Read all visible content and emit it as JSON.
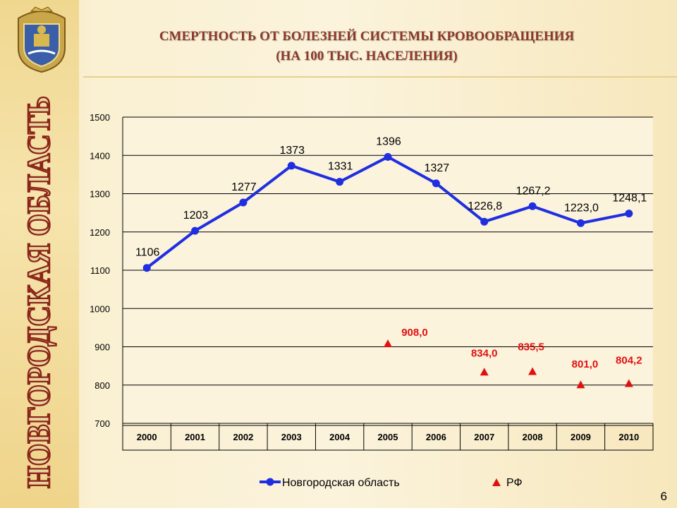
{
  "region_title": "НОВГОРОДСКАЯ ОБЛАСТЬ",
  "title_line1": "СМЕРТНОСТЬ ОТ БОЛЕЗНЕЙ СИСТЕМЫ КРОВООБРАЩЕНИЯ",
  "title_line2": "(НА 100 ТЫС. НАСЕЛЕНИЯ)",
  "page_number": "6",
  "colors": {
    "region_series": "#1f2fe0",
    "rf_series": "#e01010",
    "title": "#8b3a2a"
  },
  "chart_data": {
    "type": "line",
    "categories": [
      "2000",
      "2001",
      "2002",
      "2003",
      "2004",
      "2005",
      "2006",
      "2007",
      "2008",
      "2009",
      "2010"
    ],
    "ylim": [
      700,
      1500
    ],
    "yticks": [
      700,
      800,
      900,
      1000,
      1100,
      1200,
      1300,
      1400,
      1500
    ],
    "grid": true,
    "legend_position": "bottom",
    "series": [
      {
        "name": "Новгородская область",
        "values": [
          1106,
          1203,
          1277,
          1373,
          1331,
          1396,
          1327,
          1226.8,
          1267.2,
          1223.0,
          1248.1
        ],
        "labels": [
          "1106",
          "1203",
          "1277",
          "1373",
          "1331",
          "1396",
          "1327",
          "1226,8",
          "1267,2",
          "1223,0",
          "1248,1"
        ]
      },
      {
        "name": "РФ",
        "values": [
          null,
          null,
          null,
          null,
          null,
          908.0,
          null,
          834.0,
          835.5,
          801.0,
          804.2
        ],
        "labels": [
          null,
          null,
          null,
          null,
          null,
          "908,0",
          null,
          "834,0",
          "835,5",
          "801,0",
          "804,2"
        ]
      }
    ]
  }
}
